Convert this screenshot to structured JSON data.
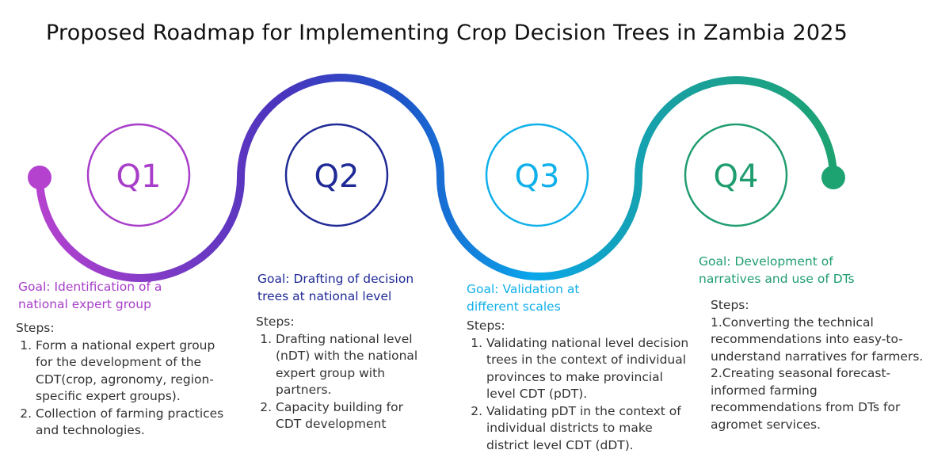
{
  "title": "Proposed Roadmap for Implementing Crop Decision Trees in Zambia 2025",
  "quarters": [
    {
      "label": "Q1",
      "goal": "Goal: Identification of a national expert group",
      "steps_heading": "Steps:",
      "steps": [
        "Form a national expert group for the development of the CDT(crop, agronomy, region-specific expert groups).",
        "Collection of farming practices and technologies."
      ]
    },
    {
      "label": "Q2",
      "goal": "Goal: Drafting of decision trees at national level",
      "steps_heading": "Steps:",
      "steps": [
        "Drafting national level (nDT) with the national expert group with partners.",
        "Capacity building for CDT development"
      ]
    },
    {
      "label": "Q3",
      "goal": "Goal: Validation at different scales",
      "steps_heading": "Steps:",
      "steps": [
        "Validating national level decision trees in the context of individual provinces to make provincial level CDT (pDT).",
        "Validating pDT in the context of individual districts to make district level CDT (dDT)."
      ]
    },
    {
      "label": "Q4",
      "goal": "Goal: Development of narratives and use of DTs",
      "steps_heading": "Steps:",
      "steps": [
        "1.Converting the technical recommendations into easy-to-understand narratives for farmers.",
        "2.Creating seasonal forecast-informed farming recommendations from DTs for agromet services."
      ]
    }
  ]
}
